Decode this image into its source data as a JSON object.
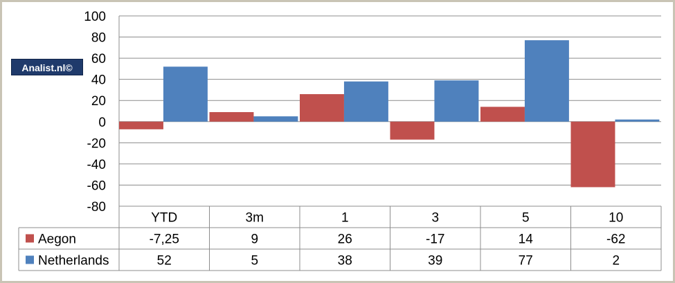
{
  "logo_text": "Analist.nl©",
  "chart_data": {
    "type": "bar",
    "categories": [
      "YTD",
      "3m",
      "1",
      "3",
      "5",
      "10"
    ],
    "series": [
      {
        "name": "Aegon",
        "values": [
          -7.25,
          9,
          26,
          -17,
          14,
          -62
        ],
        "labels": [
          "-7,25",
          "9",
          "26",
          "-17",
          "14",
          "-62"
        ],
        "color": "#c0504d"
      },
      {
        "name": "Netherlands",
        "values": [
          52,
          5,
          38,
          39,
          77,
          2
        ],
        "labels": [
          "52",
          "5",
          "38",
          "39",
          "77",
          "2"
        ],
        "color": "#4f81bd"
      }
    ],
    "ylim": [
      -80,
      100
    ],
    "yticks": [
      100,
      80,
      60,
      40,
      20,
      0,
      -20,
      -40,
      -60,
      -80
    ],
    "grid": true,
    "legend": "data-table"
  }
}
